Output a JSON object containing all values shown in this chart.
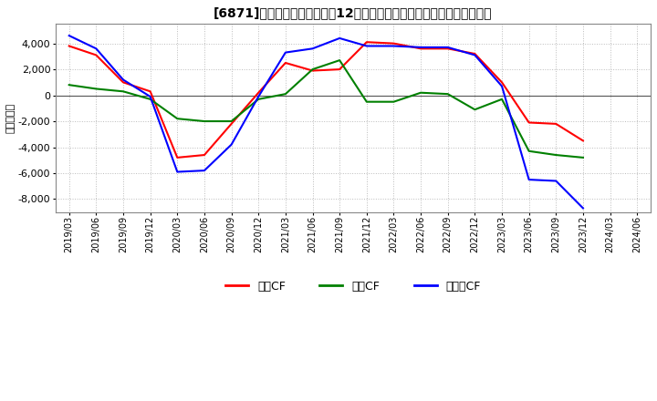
{
  "title": "[6871]　キャッシュフローの12か月移動合計の対前年同期増減額の推移",
  "ylabel": "（百万円）",
  "background_color": "#ffffff",
  "plot_bg_color": "#ffffff",
  "grid_color": "#aaaaaa",
  "ylim": [
    -9000,
    5500
  ],
  "yticks": [
    -8000,
    -6000,
    -4000,
    -2000,
    0,
    2000,
    4000
  ],
  "x_labels": [
    "2019/03",
    "2019/06",
    "2019/09",
    "2019/12",
    "2020/03",
    "2020/06",
    "2020/09",
    "2020/12",
    "2021/03",
    "2021/06",
    "2021/09",
    "2021/12",
    "2022/03",
    "2022/06",
    "2022/09",
    "2022/12",
    "2023/03",
    "2023/06",
    "2023/09",
    "2023/12",
    "2024/03",
    "2024/06"
  ],
  "series": {
    "営業CF": {
      "color": "#ff0000",
      "data": [
        3800,
        3100,
        1000,
        300,
        -4800,
        -4600,
        -2200,
        200,
        2500,
        1900,
        2000,
        4100,
        4000,
        3600,
        3600,
        3200,
        1000,
        -2100,
        -2200,
        -3500,
        null,
        null
      ]
    },
    "投資CF": {
      "color": "#008000",
      "data": [
        800,
        500,
        300,
        -300,
        -1800,
        -2000,
        -2000,
        -300,
        100,
        2000,
        2700,
        -500,
        -500,
        200,
        100,
        -1100,
        -300,
        -4300,
        -4600,
        -4800,
        null,
        null
      ]
    },
    "フリーCF": {
      "color": "#0000ff",
      "data": [
        4600,
        3600,
        1200,
        -100,
        -5900,
        -5800,
        -3800,
        -100,
        3300,
        3600,
        4400,
        3800,
        3800,
        3700,
        3700,
        3100,
        700,
        -6500,
        -6600,
        -8700,
        null,
        null
      ]
    }
  },
  "legend_labels": [
    "営業CF",
    "投資CF",
    "フリーCF"
  ],
  "legend_colors": [
    "#ff0000",
    "#008000",
    "#0000ff"
  ]
}
